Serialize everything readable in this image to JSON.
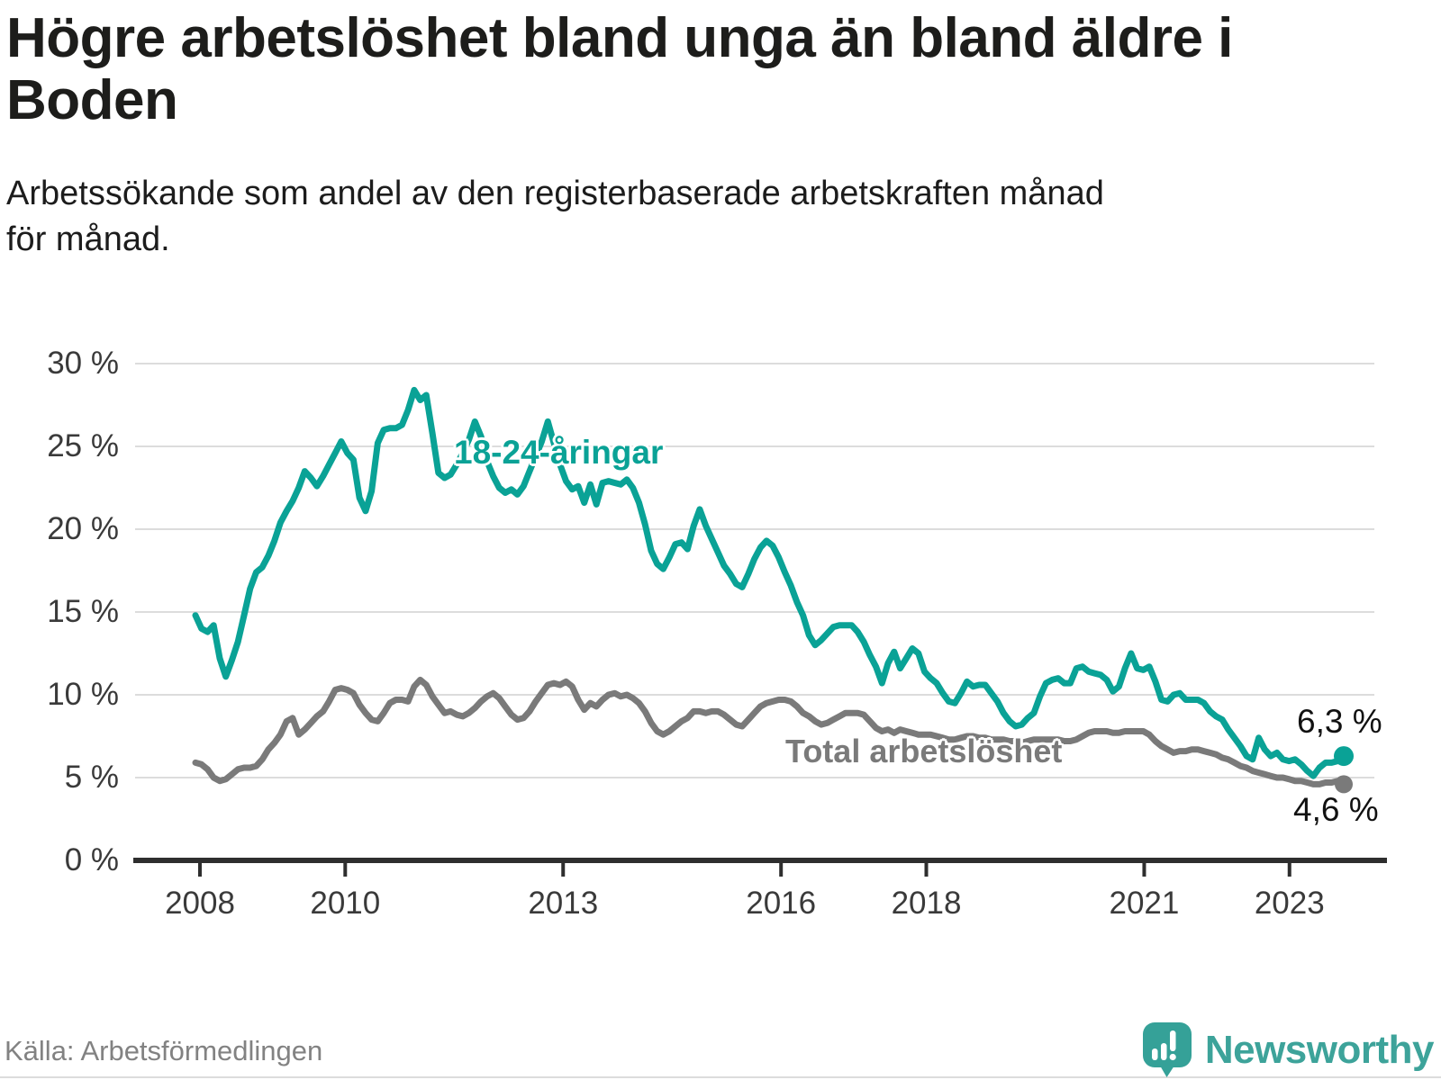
{
  "title": {
    "lines": [
      "Högre arbetslöshet bland unga än bland äldre i",
      "Boden"
    ]
  },
  "subtitle": {
    "lines": [
      "Arbetssökande som andel av den registerbaserade arbetskraften månad",
      "för månad."
    ]
  },
  "source": {
    "label": "Källa: Arbetsförmedlingen"
  },
  "branding": {
    "name": "Newsworthy",
    "icon": "bar-chart-speech-bubble-icon"
  },
  "colors": {
    "youth_line": "#0aa296",
    "total_line": "#7a7a7a",
    "axis": "#2e2e2e",
    "grid": "#dcdcdc",
    "text": "#1d1d1b",
    "muted": "#828282",
    "brand": "#3da39a"
  },
  "chart_data": {
    "type": "line",
    "unit": "%",
    "grid": true,
    "ylim": [
      0,
      30
    ],
    "y_ticks": [
      "0 %",
      "5 %",
      "10 %",
      "15 %",
      "20 %",
      "25 %",
      "30 %"
    ],
    "x_tick_labels": [
      "2008",
      "2010",
      "2013",
      "2016",
      "2018",
      "2021",
      "2023"
    ],
    "x": {
      "start": "2008-01",
      "end": "2023-10",
      "frequency": "monthly"
    },
    "series": [
      {
        "name": "18-24-åringar",
        "color": "#0aa296",
        "end_label": "6,3 %",
        "values": [
          14.8,
          14.0,
          13.8,
          14.2,
          12.2,
          11.1,
          12.1,
          13.2,
          14.8,
          16.4,
          17.4,
          17.7,
          18.4,
          19.3,
          20.4,
          21.1,
          21.7,
          22.5,
          23.5,
          23.1,
          22.6,
          23.2,
          23.9,
          24.6,
          25.3,
          24.6,
          24.2,
          21.9,
          21.1,
          22.3,
          25.2,
          26.0,
          26.1,
          26.1,
          26.3,
          27.2,
          28.4,
          27.8,
          28.1,
          25.8,
          23.4,
          23.1,
          23.3,
          23.9,
          24.6,
          25.4,
          26.5,
          25.6,
          24.1,
          23.2,
          22.5,
          22.2,
          22.4,
          22.1,
          22.6,
          23.5,
          24.4,
          25.3,
          26.5,
          25.2,
          23.9,
          22.9,
          22.4,
          22.6,
          21.6,
          22.7,
          21.5,
          22.8,
          22.9,
          22.8,
          22.7,
          23.0,
          22.5,
          21.6,
          20.3,
          18.7,
          17.9,
          17.6,
          18.3,
          19.1,
          19.2,
          18.8,
          20.2,
          21.2,
          20.2,
          19.4,
          18.6,
          17.8,
          17.3,
          16.7,
          16.5,
          17.3,
          18.2,
          18.9,
          19.3,
          19.0,
          18.3,
          17.4,
          16.6,
          15.6,
          14.8,
          13.6,
          13.0,
          13.3,
          13.7,
          14.1,
          14.2,
          14.2,
          14.2,
          13.8,
          13.2,
          12.4,
          11.7,
          10.7,
          11.9,
          12.6,
          11.6,
          12.2,
          12.8,
          12.5,
          11.4,
          11.0,
          10.7,
          10.1,
          9.6,
          9.5,
          10.1,
          10.8,
          10.5,
          10.6,
          10.6,
          10.1,
          9.6,
          8.9,
          8.4,
          8.1,
          8.2,
          8.6,
          8.9,
          9.9,
          10.7,
          10.9,
          11.0,
          10.7,
          10.7,
          11.6,
          11.7,
          11.4,
          11.3,
          11.2,
          10.9,
          10.2,
          10.5,
          11.6,
          12.5,
          11.6,
          11.5,
          11.7,
          10.8,
          9.7,
          9.6,
          10.0,
          10.1,
          9.7,
          9.7,
          9.7,
          9.5,
          9.0,
          8.7,
          8.5,
          7.9,
          7.4,
          6.9,
          6.3,
          6.1,
          7.4,
          6.7,
          6.3,
          6.5,
          6.1,
          6.0,
          6.1,
          5.8,
          5.4,
          5.1,
          5.6,
          5.9,
          5.9,
          6.0,
          6.3
        ]
      },
      {
        "name": "Total arbetslöshet",
        "color": "#7a7a7a",
        "end_label": "4,6 %",
        "values": [
          5.9,
          5.8,
          5.5,
          5.0,
          4.8,
          4.9,
          5.2,
          5.5,
          5.6,
          5.6,
          5.7,
          6.1,
          6.7,
          7.1,
          7.6,
          8.4,
          8.6,
          7.6,
          7.9,
          8.3,
          8.7,
          9.0,
          9.6,
          10.3,
          10.4,
          10.3,
          10.1,
          9.4,
          8.9,
          8.5,
          8.4,
          8.9,
          9.5,
          9.7,
          9.7,
          9.6,
          10.5,
          10.9,
          10.6,
          9.9,
          9.4,
          8.9,
          9.0,
          8.8,
          8.7,
          8.9,
          9.2,
          9.6,
          9.9,
          10.1,
          9.8,
          9.3,
          8.8,
          8.5,
          8.6,
          9.0,
          9.6,
          10.1,
          10.6,
          10.7,
          10.6,
          10.8,
          10.5,
          9.7,
          9.1,
          9.5,
          9.3,
          9.7,
          10.0,
          10.1,
          9.9,
          10.0,
          9.8,
          9.5,
          9.0,
          8.3,
          7.8,
          7.6,
          7.8,
          8.1,
          8.4,
          8.6,
          9.0,
          9.0,
          8.9,
          9.0,
          9.0,
          8.8,
          8.5,
          8.2,
          8.1,
          8.5,
          8.9,
          9.3,
          9.5,
          9.6,
          9.7,
          9.7,
          9.6,
          9.3,
          8.9,
          8.7,
          8.4,
          8.2,
          8.3,
          8.5,
          8.7,
          8.9,
          8.9,
          8.9,
          8.8,
          8.4,
          8.0,
          7.8,
          7.9,
          7.7,
          7.9,
          7.8,
          7.7,
          7.6,
          7.6,
          7.6,
          7.5,
          7.4,
          7.3,
          7.3,
          7.4,
          7.5,
          7.5,
          7.4,
          7.4,
          7.3,
          7.3,
          7.3,
          7.2,
          7.2,
          7.1,
          7.2,
          7.3,
          7.3,
          7.3,
          7.3,
          7.3,
          7.2,
          7.2,
          7.3,
          7.5,
          7.7,
          7.8,
          7.8,
          7.8,
          7.7,
          7.7,
          7.8,
          7.8,
          7.8,
          7.8,
          7.6,
          7.2,
          6.9,
          6.7,
          6.5,
          6.6,
          6.6,
          6.7,
          6.7,
          6.6,
          6.5,
          6.4,
          6.2,
          6.1,
          5.9,
          5.7,
          5.6,
          5.4,
          5.3,
          5.2,
          5.1,
          5.0,
          5.0,
          4.9,
          4.8,
          4.8,
          4.7,
          4.6,
          4.6,
          4.7,
          4.7,
          4.8,
          4.6
        ]
      }
    ]
  }
}
